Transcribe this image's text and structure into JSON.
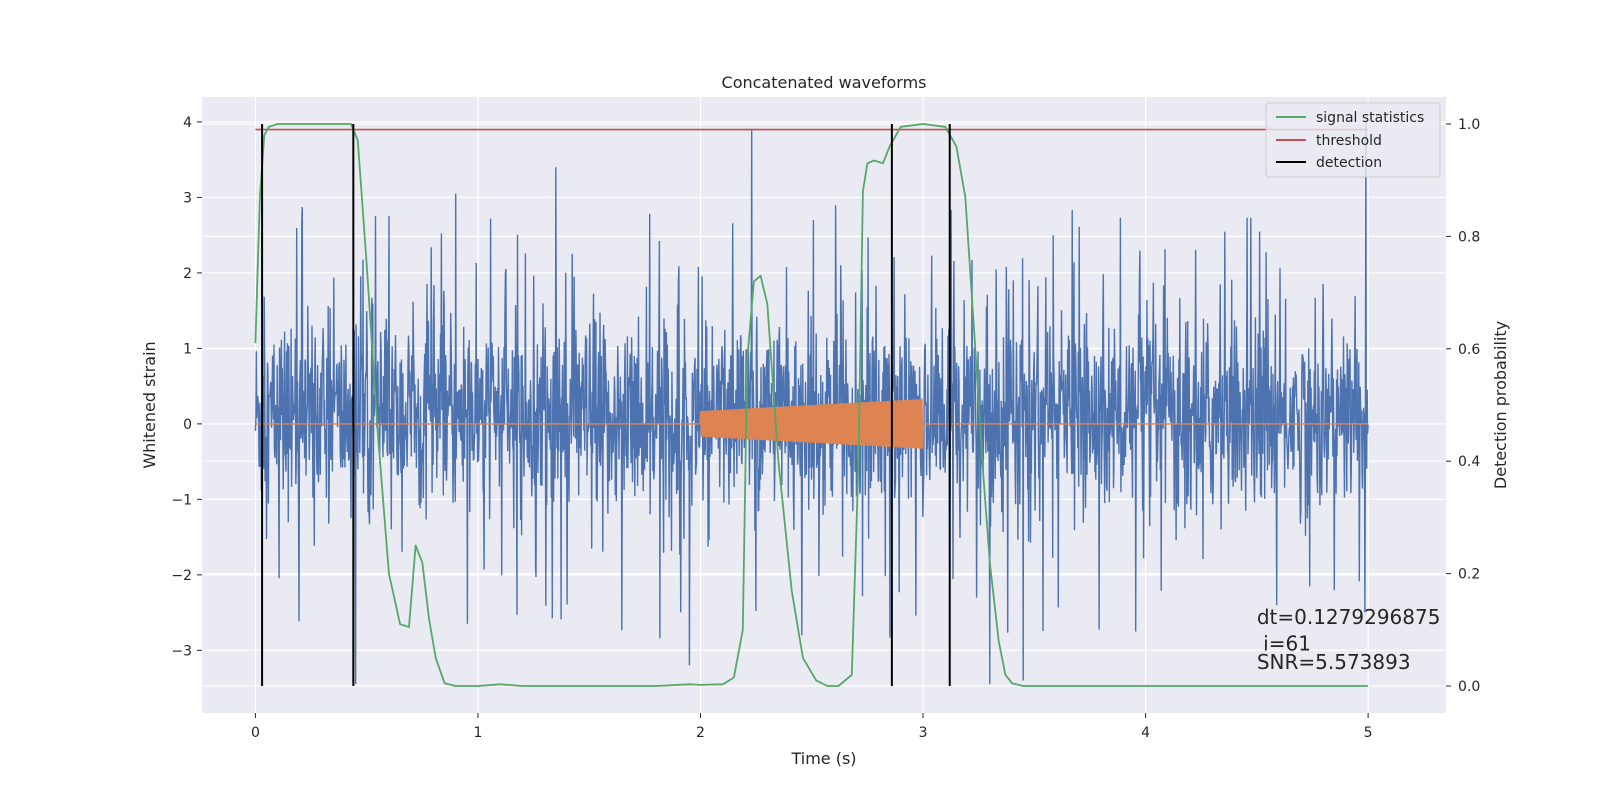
{
  "chart_data": {
    "type": "line",
    "title": "Concatenated waveforms",
    "xlabel": "Time (s)",
    "ylabel_left": "Whitened strain",
    "ylabel_right": "Detection probability",
    "xlim": [
      -0.24,
      5.35
    ],
    "ylim_left": [
      -3.83,
      4.33
    ],
    "ylim_right": [
      -0.048,
      1.048
    ],
    "x_ticks": [
      0,
      1,
      2,
      3,
      4,
      5
    ],
    "x_tick_labels": [
      "0",
      "1",
      "2",
      "3",
      "4",
      "5"
    ],
    "y_left_ticks": [
      -3,
      -2,
      -1,
      0,
      1,
      2,
      3,
      4
    ],
    "y_left_tick_labels": [
      "−3",
      "−2",
      "−1",
      "0",
      "1",
      "2",
      "3",
      "4"
    ],
    "y_right_ticks": [
      0.0,
      0.2,
      0.4,
      0.6,
      0.8,
      1.0
    ],
    "y_right_tick_labels": [
      "0.0",
      "0.2",
      "0.4",
      "0.6",
      "0.8",
      "1.0"
    ],
    "grid": true,
    "legend_position": "top-right",
    "legend": [
      {
        "label": "signal statistics",
        "color": "#55a868"
      },
      {
        "label": "threshold",
        "color": "#c44e52"
      },
      {
        "label": "detection",
        "color": "#000000"
      }
    ],
    "colors": {
      "strain": "#4c72b0",
      "injection": "#dd8452",
      "signal_statistics": "#55a868",
      "threshold": "#c44e52",
      "detection": "#000000",
      "plot_background": "#eaeaf2",
      "grid": "#ffffff"
    },
    "noise_series": {
      "axis": "left",
      "x_range": [
        0,
        5
      ],
      "typical_envelope": [
        -1.5,
        2.0
      ],
      "notable_peaks": [
        {
          "x": 2.23,
          "y": 3.9
        },
        {
          "x": 4.99,
          "y": 4.0
        },
        {
          "x": 1.35,
          "y": 3.4
        },
        {
          "x": 0.9,
          "y": 3.05
        }
      ],
      "notable_troughs": [
        {
          "x": 1.95,
          "y": -3.2
        },
        {
          "x": 3.3,
          "y": -3.45
        },
        {
          "x": 0.45,
          "y": -3.45
        },
        {
          "x": 3.45,
          "y": -3.4
        }
      ]
    },
    "injection_series": {
      "axis": "left",
      "x_range": [
        0,
        5
      ],
      "chirp_start": 2.0,
      "chirp_end": 3.0,
      "amplitude_start": 0.17,
      "amplitude_end": 0.33
    },
    "threshold_series": {
      "axis": "right",
      "x": [
        0,
        5
      ],
      "y": [
        0.99,
        0.99
      ]
    },
    "signal_statistics_series": {
      "axis": "right",
      "x": [
        0.0,
        0.02,
        0.04,
        0.06,
        0.1,
        0.2,
        0.35,
        0.43,
        0.46,
        0.5,
        0.55,
        0.6,
        0.65,
        0.69,
        0.72,
        0.75,
        0.78,
        0.81,
        0.85,
        0.9,
        1.0,
        1.1,
        1.2,
        1.5,
        1.8,
        1.95,
        2.0,
        2.1,
        2.15,
        2.19,
        2.21,
        2.24,
        2.27,
        2.3,
        2.35,
        2.41,
        2.46,
        2.52,
        2.57,
        2.62,
        2.68,
        2.71,
        2.73,
        2.75,
        2.78,
        2.82,
        2.85,
        2.9,
        3.0,
        3.1,
        3.15,
        3.19,
        3.23,
        3.27,
        3.3,
        3.34,
        3.37,
        3.4,
        3.45,
        3.6,
        4.0,
        4.5,
        5.0
      ],
      "y": [
        0.61,
        0.87,
        0.98,
        0.995,
        1.0,
        1.0,
        1.0,
        1.0,
        0.97,
        0.75,
        0.45,
        0.2,
        0.11,
        0.105,
        0.25,
        0.22,
        0.12,
        0.05,
        0.005,
        0.0,
        0.0,
        0.003,
        0.0,
        0.0,
        0.0,
        0.003,
        0.002,
        0.003,
        0.015,
        0.1,
        0.58,
        0.72,
        0.73,
        0.68,
        0.4,
        0.17,
        0.05,
        0.01,
        0.0,
        0.0,
        0.02,
        0.4,
        0.88,
        0.93,
        0.935,
        0.93,
        0.96,
        0.995,
        1.0,
        0.995,
        0.96,
        0.87,
        0.63,
        0.38,
        0.22,
        0.08,
        0.02,
        0.005,
        0.0,
        0.0,
        0.0,
        0.0,
        0.0
      ]
    },
    "detections": [
      0.03,
      0.44,
      2.86,
      3.12
    ],
    "detection_y_range": [
      0.0,
      1.0
    ],
    "annotations": [
      {
        "text": "dt=0.1279296875",
        "x": 4.5,
        "y": -2.65
      },
      {
        "text": " i=61",
        "x": 4.5,
        "y": -3.0
      },
      {
        "text": "SNR=5.573893",
        "x": 4.5,
        "y": -3.25
      }
    ]
  }
}
